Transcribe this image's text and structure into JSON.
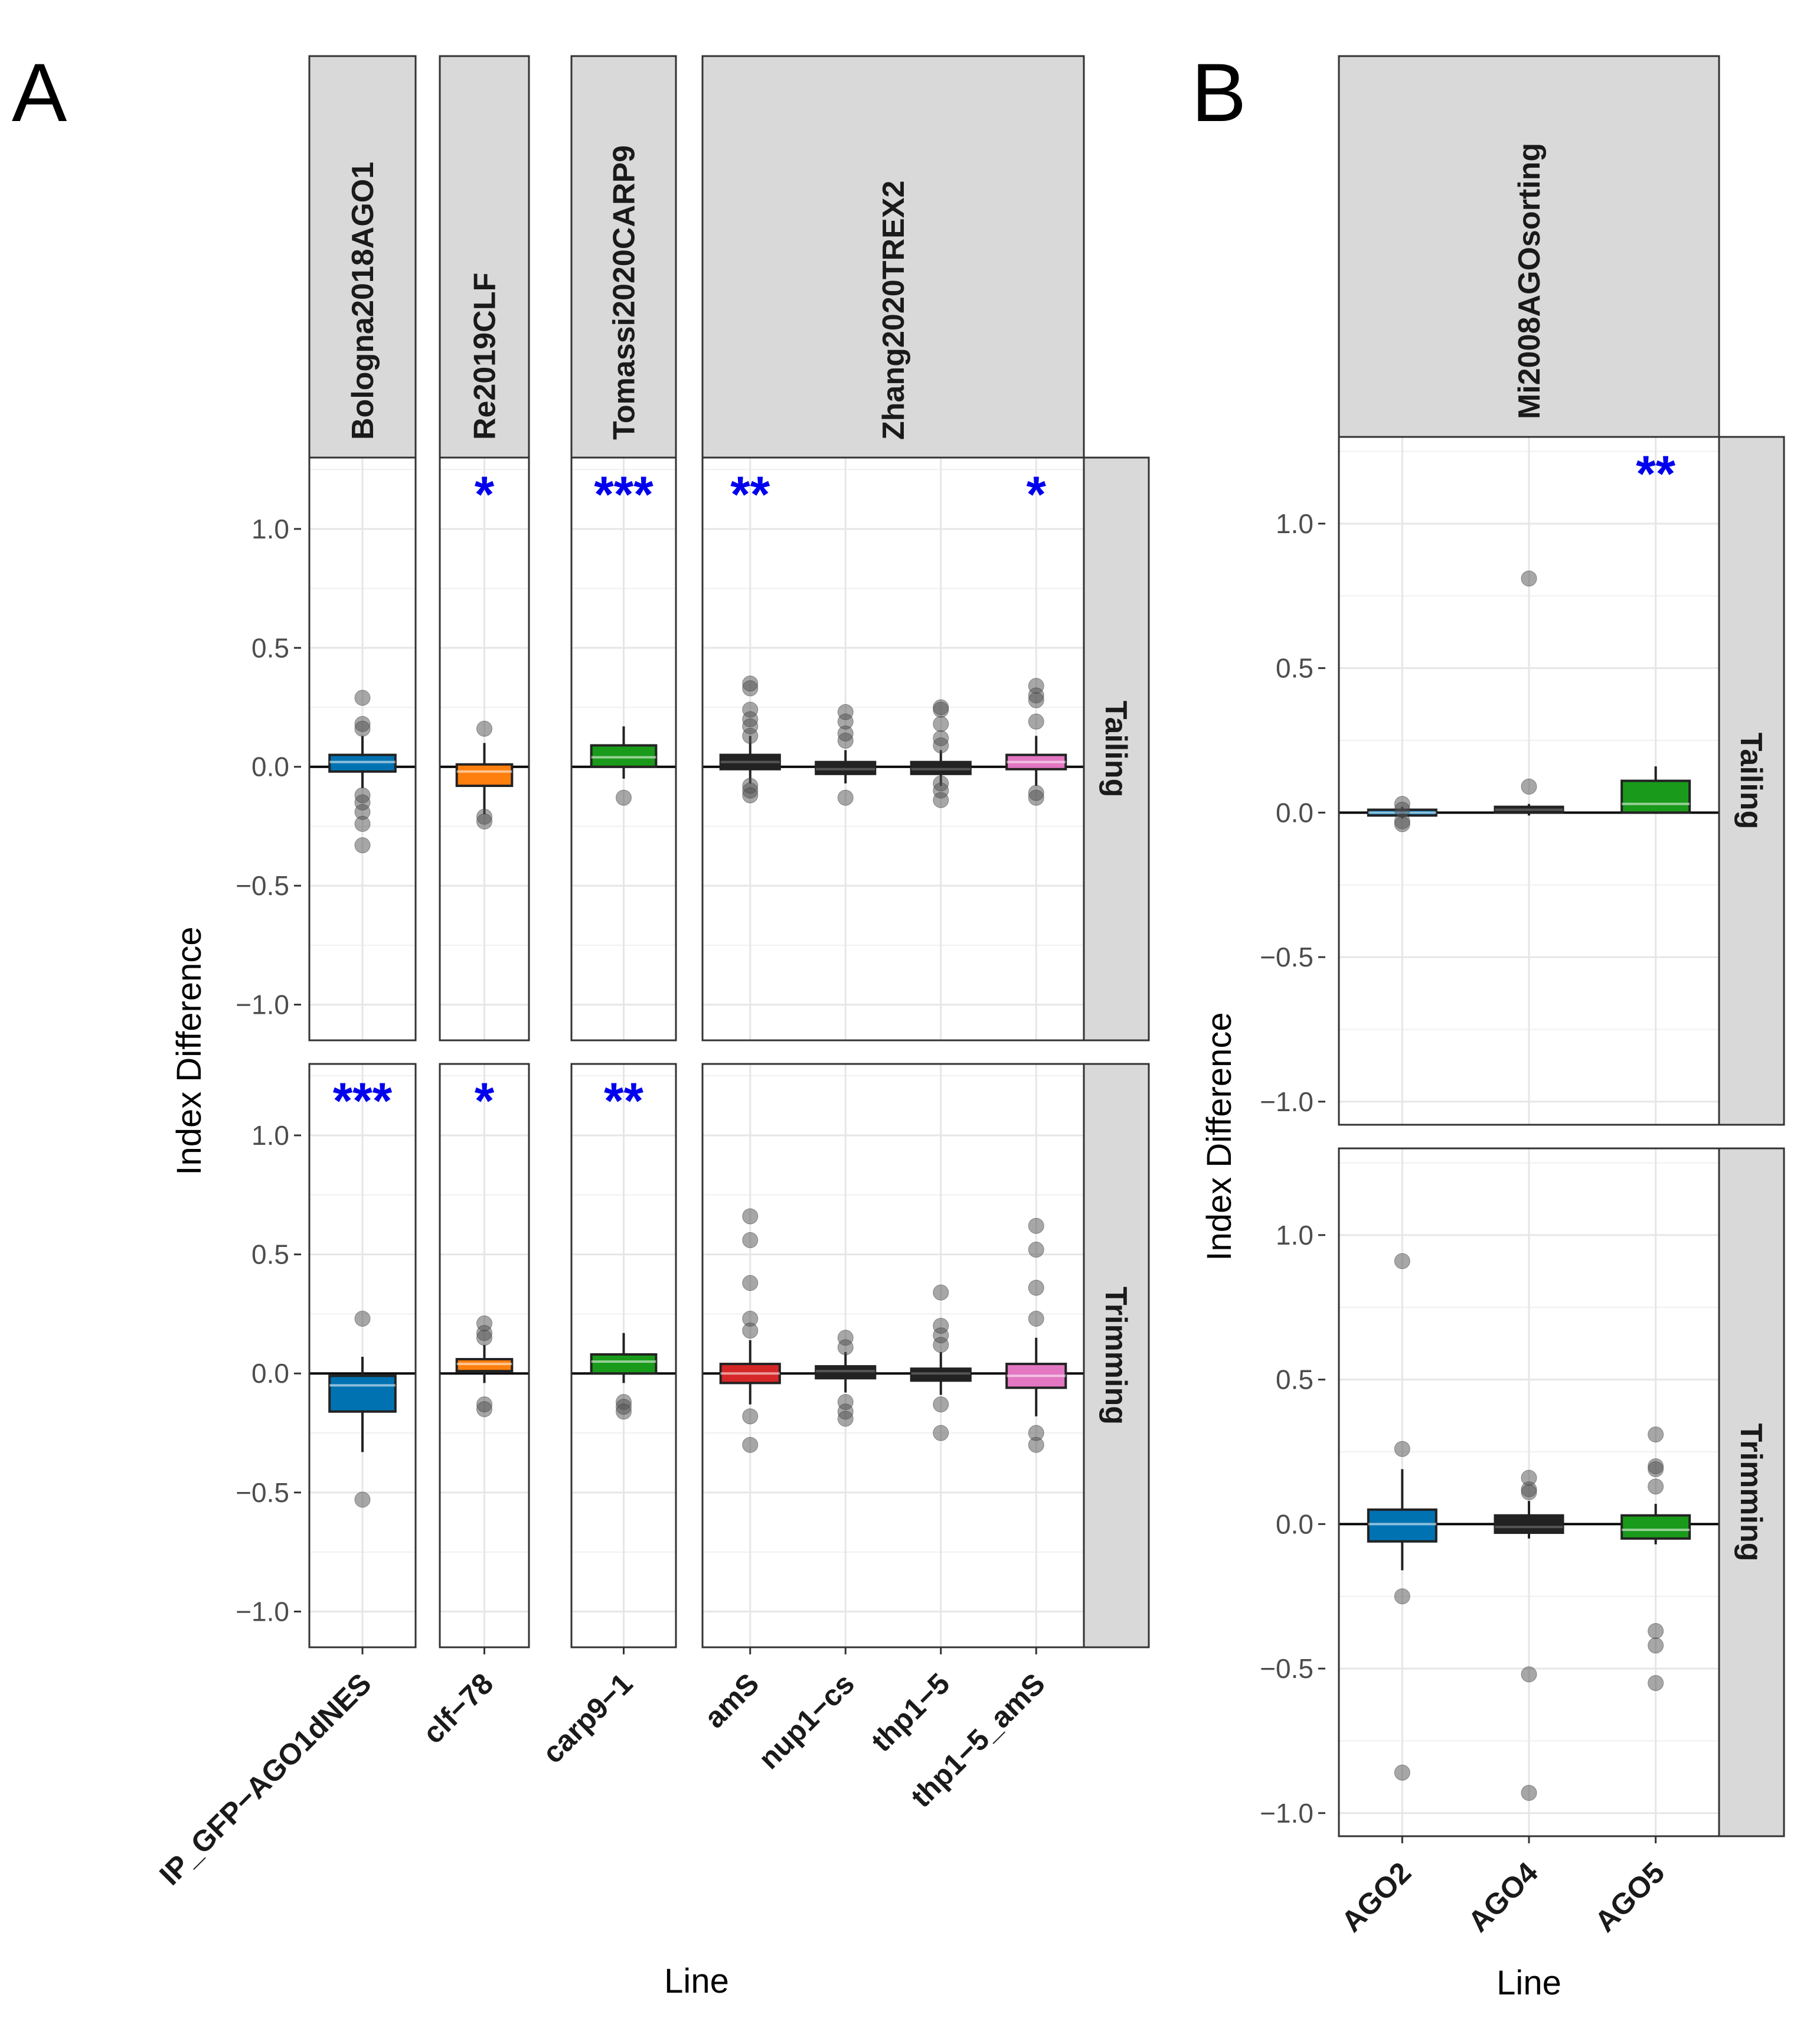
{
  "chart_data": [
    {
      "panel": "A",
      "type": "box",
      "xlabel": "Line",
      "ylabel": "Index Difference",
      "ylim": [
        -1.15,
        1.3
      ],
      "yticks": [
        1.0,
        0.5,
        0.0,
        -0.5,
        -1.0
      ],
      "ytick_labels": [
        "1.0",
        "0.5",
        "0.0",
        "−0.5",
        "−1.0"
      ],
      "row_facets": [
        "Tailing",
        "Trimming"
      ],
      "col_facets": [
        {
          "name": "Bologna2018AGO1",
          "lines": [
            "IP_GFP-AGO1dNES"
          ]
        },
        {
          "name": "Re2019CLF",
          "lines": [
            "clf-78"
          ]
        },
        {
          "name": "Tomassi2020CARP9",
          "lines": [
            "carp9-1"
          ]
        },
        {
          "name": "Zhang2020TREX2",
          "lines": [
            "amS",
            "nup1-cs",
            "thp1-5",
            "thp1-5_amS"
          ]
        }
      ],
      "x_tick_labels": [
        "IP_GFP−AGO1dNES",
        "clf−78",
        "carp9−1",
        "amS",
        "nup1−cs",
        "thp1−5",
        "thp1−5_amS"
      ],
      "series": [
        {
          "facet": "Bologna2018AGO1",
          "row": "Tailing",
          "line": "IP_GFP-AGO1dNES",
          "color": "#0072B2",
          "q1": -0.02,
          "median": 0.02,
          "q3": 0.05,
          "whisker_low": -0.09,
          "whisker_high": 0.13,
          "outliers": [
            0.29,
            0.18,
            0.16,
            -0.12,
            -0.15,
            -0.19,
            -0.24,
            -0.33
          ],
          "sig": ""
        },
        {
          "facet": "Re2019CLF",
          "row": "Tailing",
          "line": "clf-78",
          "color": "#FF7F0E",
          "q1": -0.08,
          "median": -0.02,
          "q3": 0.01,
          "whisker_low": -0.2,
          "whisker_high": 0.1,
          "outliers": [
            0.16,
            -0.21,
            -0.23
          ],
          "sig": "*"
        },
        {
          "facet": "Tomassi2020CARP9",
          "row": "Tailing",
          "line": "carp9-1",
          "color": "#1A9A1A",
          "q1": 0.0,
          "median": 0.04,
          "q3": 0.09,
          "whisker_low": -0.05,
          "whisker_high": 0.17,
          "outliers": [
            -0.13
          ],
          "sig": "***"
        },
        {
          "facet": "Zhang2020TREX2",
          "row": "Tailing",
          "line": "amS",
          "color": "#222222",
          "q1": -0.01,
          "median": 0.02,
          "q3": 0.05,
          "whisker_low": -0.07,
          "whisker_high": 0.13,
          "outliers": [
            0.35,
            0.33,
            0.24,
            0.2,
            0.17,
            0.13,
            -0.08,
            -0.1,
            -0.12
          ],
          "sig": "**"
        },
        {
          "facet": "Zhang2020TREX2",
          "row": "Tailing",
          "line": "nup1-cs",
          "color": "#222222",
          "q1": -0.03,
          "median": -0.01,
          "q3": 0.02,
          "whisker_low": -0.07,
          "whisker_high": 0.07,
          "outliers": [
            0.23,
            0.19,
            0.14,
            0.11,
            -0.13
          ],
          "sig": ""
        },
        {
          "facet": "Zhang2020TREX2",
          "row": "Tailing",
          "line": "thp1-5",
          "color": "#222222",
          "q1": -0.03,
          "median": -0.01,
          "q3": 0.02,
          "whisker_low": -0.08,
          "whisker_high": 0.07,
          "outliers": [
            0.25,
            0.24,
            0.18,
            0.12,
            0.09,
            -0.07,
            -0.1,
            -0.14
          ],
          "sig": ""
        },
        {
          "facet": "Zhang2020TREX2",
          "row": "Tailing",
          "line": "thp1-5_amS",
          "color": "#E377C2",
          "q1": -0.01,
          "median": 0.02,
          "q3": 0.05,
          "whisker_low": -0.08,
          "whisker_high": 0.13,
          "outliers": [
            0.34,
            0.3,
            0.28,
            0.19,
            -0.11,
            -0.13
          ],
          "sig": "*"
        },
        {
          "facet": "Bologna2018AGO1",
          "row": "Trimming",
          "line": "IP_GFP-AGO1dNES",
          "color": "#0072B2",
          "q1": -0.16,
          "median": -0.05,
          "q3": -0.01,
          "whisker_low": -0.33,
          "whisker_high": 0.07,
          "outliers": [
            0.23,
            -0.53
          ],
          "sig": "***"
        },
        {
          "facet": "Re2019CLF",
          "row": "Trimming",
          "line": "clf-78",
          "color": "#FF7F0E",
          "q1": 0.01,
          "median": 0.04,
          "q3": 0.06,
          "whisker_low": -0.04,
          "whisker_high": 0.12,
          "outliers": [
            0.21,
            0.17,
            0.15,
            -0.13,
            -0.15
          ],
          "sig": "*"
        },
        {
          "facet": "Tomassi2020CARP9",
          "row": "Trimming",
          "line": "carp9-1",
          "color": "#1A9A1A",
          "q1": 0.0,
          "median": 0.05,
          "q3": 0.08,
          "whisker_low": -0.04,
          "whisker_high": 0.17,
          "outliers": [
            -0.12,
            -0.14,
            -0.16
          ],
          "sig": "**"
        },
        {
          "facet": "Zhang2020TREX2",
          "row": "Trimming",
          "line": "amS",
          "color": "#D62728",
          "q1": -0.04,
          "median": 0.0,
          "q3": 0.04,
          "whisker_low": -0.13,
          "whisker_high": 0.14,
          "outliers": [
            0.66,
            0.56,
            0.38,
            0.23,
            0.18,
            -0.18,
            -0.3
          ],
          "sig": ""
        },
        {
          "facet": "Zhang2020TREX2",
          "row": "Trimming",
          "line": "nup1-cs",
          "color": "#222222",
          "q1": -0.02,
          "median": 0.01,
          "q3": 0.03,
          "whisker_low": -0.08,
          "whisker_high": 0.09,
          "outliers": [
            0.15,
            0.11,
            -0.12,
            -0.16,
            -0.19
          ],
          "sig": ""
        },
        {
          "facet": "Zhang2020TREX2",
          "row": "Trimming",
          "line": "thp1-5",
          "color": "#222222",
          "q1": -0.03,
          "median": 0.0,
          "q3": 0.02,
          "whisker_low": -0.09,
          "whisker_high": 0.09,
          "outliers": [
            0.34,
            0.2,
            0.16,
            0.12,
            -0.13,
            -0.25
          ],
          "sig": ""
        },
        {
          "facet": "Zhang2020TREX2",
          "row": "Trimming",
          "line": "thp1-5_amS",
          "color": "#E377C2",
          "q1": -0.06,
          "median": -0.01,
          "q3": 0.04,
          "whisker_low": -0.18,
          "whisker_high": 0.15,
          "outliers": [
            0.62,
            0.52,
            0.36,
            0.23,
            -0.25,
            -0.3
          ],
          "sig": ""
        }
      ]
    },
    {
      "panel": "B",
      "type": "box",
      "xlabel": "Line",
      "ylabel": "Index Difference",
      "ylim": [
        -1.08,
        1.3
      ],
      "yticks": [
        1.0,
        0.5,
        0.0,
        -0.5,
        -1.0
      ],
      "ytick_labels": [
        "1.0",
        "0.5",
        "0.0",
        "−0.5",
        "−1.0"
      ],
      "row_facets": [
        "Tailing",
        "Trimming"
      ],
      "col_facets": [
        {
          "name": "Mi2008AGOsorting",
          "lines": [
            "AGO2",
            "AGO4",
            "AGO5"
          ]
        }
      ],
      "x_tick_labels": [
        "AGO2",
        "AGO4",
        "AGO5"
      ],
      "series": [
        {
          "facet": "Mi2008AGOsorting",
          "row": "Tailing",
          "line": "AGO2",
          "color": "#0072B2",
          "q1": -0.01,
          "median": 0.0,
          "q3": 0.01,
          "whisker_low": -0.02,
          "whisker_high": 0.02,
          "outliers": [
            0.03,
            0.01,
            -0.03,
            -0.04
          ],
          "sig": ""
        },
        {
          "facet": "Mi2008AGOsorting",
          "row": "Tailing",
          "line": "AGO4",
          "color": "#222222",
          "q1": 0.0,
          "median": 0.01,
          "q3": 0.02,
          "whisker_low": -0.01,
          "whisker_high": 0.03,
          "outliers": [
            0.81,
            0.09
          ],
          "sig": ""
        },
        {
          "facet": "Mi2008AGOsorting",
          "row": "Tailing",
          "line": "AGO5",
          "color": "#1A9A1A",
          "q1": 0.0,
          "median": 0.03,
          "q3": 0.11,
          "whisker_low": 0.0,
          "whisker_high": 0.16,
          "outliers": [],
          "sig": "**"
        },
        {
          "facet": "Mi2008AGOsorting",
          "row": "Trimming",
          "line": "AGO2",
          "color": "#0072B2",
          "q1": -0.06,
          "median": 0.0,
          "q3": 0.05,
          "whisker_low": -0.16,
          "whisker_high": 0.19,
          "outliers": [
            0.91,
            0.26,
            -0.25,
            -0.86
          ],
          "sig": ""
        },
        {
          "facet": "Mi2008AGOsorting",
          "row": "Trimming",
          "line": "AGO4",
          "color": "#222222",
          "q1": -0.03,
          "median": -0.01,
          "q3": 0.03,
          "whisker_low": -0.05,
          "whisker_high": 0.08,
          "outliers": [
            0.16,
            0.12,
            0.11,
            -0.52,
            -0.93
          ],
          "sig": ""
        },
        {
          "facet": "Mi2008AGOsorting",
          "row": "Trimming",
          "line": "AGO5",
          "color": "#1A9A1A",
          "q1": -0.05,
          "median": -0.02,
          "q3": 0.03,
          "whisker_low": -0.07,
          "whisker_high": 0.07,
          "outliers": [
            0.31,
            0.2,
            0.19,
            0.13,
            -0.37,
            -0.42,
            -0.55
          ],
          "sig": ""
        }
      ]
    }
  ]
}
